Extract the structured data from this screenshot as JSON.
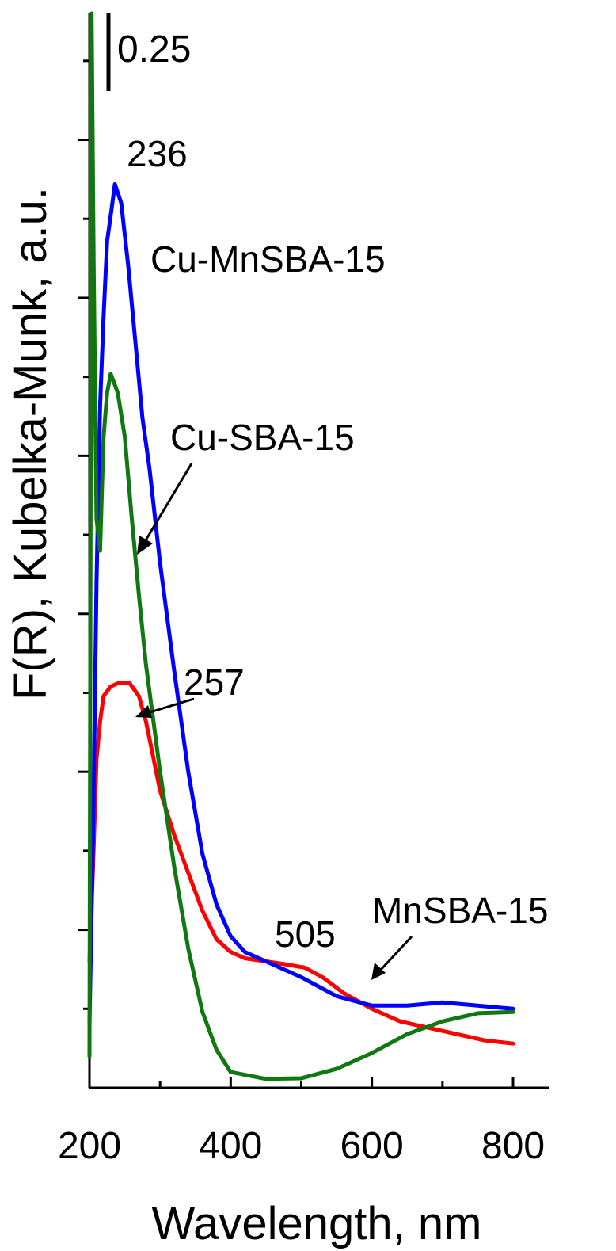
{
  "chart_data": {
    "type": "line",
    "title": "",
    "xlabel": "Wavelength, nm",
    "ylabel": "F(R), Kubelka-Munk, a.u.",
    "xlim": [
      200,
      850
    ],
    "ylim": [
      0,
      1.7
    ],
    "x_ticks": [
      "200",
      "400",
      "600",
      "800"
    ],
    "y_scale_bar": "0.25",
    "legend": "none",
    "grid": false,
    "series": [
      {
        "name": "Cu-MnSBA-15",
        "color": "#0000ff",
        "x": [
          200,
          205,
          210,
          215,
          220,
          225,
          230,
          236,
          245,
          255,
          265,
          275,
          285,
          300,
          320,
          340,
          360,
          380,
          400,
          420,
          450,
          500,
          550,
          600,
          650,
          700,
          750,
          800
        ],
        "y": [
          0.1,
          0.4,
          0.8,
          1.08,
          1.22,
          1.34,
          1.38,
          1.43,
          1.4,
          1.3,
          1.18,
          1.06,
          0.98,
          0.83,
          0.66,
          0.5,
          0.37,
          0.29,
          0.24,
          0.215,
          0.2,
          0.175,
          0.145,
          0.13,
          0.13,
          0.135,
          0.13,
          0.125
        ]
      },
      {
        "name": "Cu-SBA-15",
        "color": "#117711",
        "x": [
          200,
          203,
          206,
          210,
          215,
          220,
          225,
          230,
          240,
          250,
          260,
          270,
          280,
          300,
          320,
          340,
          360,
          380,
          400,
          450,
          500,
          550,
          600,
          650,
          700,
          750,
          800
        ],
        "y": [
          0.05,
          1.7,
          1.3,
          0.9,
          0.85,
          1.03,
          1.1,
          1.13,
          1.1,
          1.03,
          0.9,
          0.78,
          0.67,
          0.5,
          0.35,
          0.22,
          0.12,
          0.06,
          0.025,
          0.014,
          0.015,
          0.03,
          0.055,
          0.085,
          0.105,
          0.118,
          0.12
        ]
      },
      {
        "name": "MnSBA-15",
        "color": "#ff0000",
        "x": [
          200,
          205,
          210,
          215,
          220,
          230,
          240,
          257,
          270,
          280,
          300,
          320,
          340,
          360,
          380,
          400,
          420,
          450,
          480,
          505,
          530,
          560,
          600,
          640,
          680,
          720,
          760,
          800
        ],
        "y": [
          0.2,
          0.35,
          0.52,
          0.58,
          0.62,
          0.635,
          0.64,
          0.64,
          0.62,
          0.58,
          0.47,
          0.4,
          0.34,
          0.28,
          0.235,
          0.215,
          0.205,
          0.2,
          0.195,
          0.19,
          0.175,
          0.15,
          0.125,
          0.105,
          0.095,
          0.085,
          0.075,
          0.07
        ]
      }
    ]
  },
  "annotations": {
    "peak_236": "236",
    "peak_257": "257",
    "peak_505": "505",
    "label_cu_mnsba": "Cu-MnSBA-15",
    "label_cu_sba": "Cu-SBA-15",
    "label_mnsba": "MnSBA-15"
  }
}
